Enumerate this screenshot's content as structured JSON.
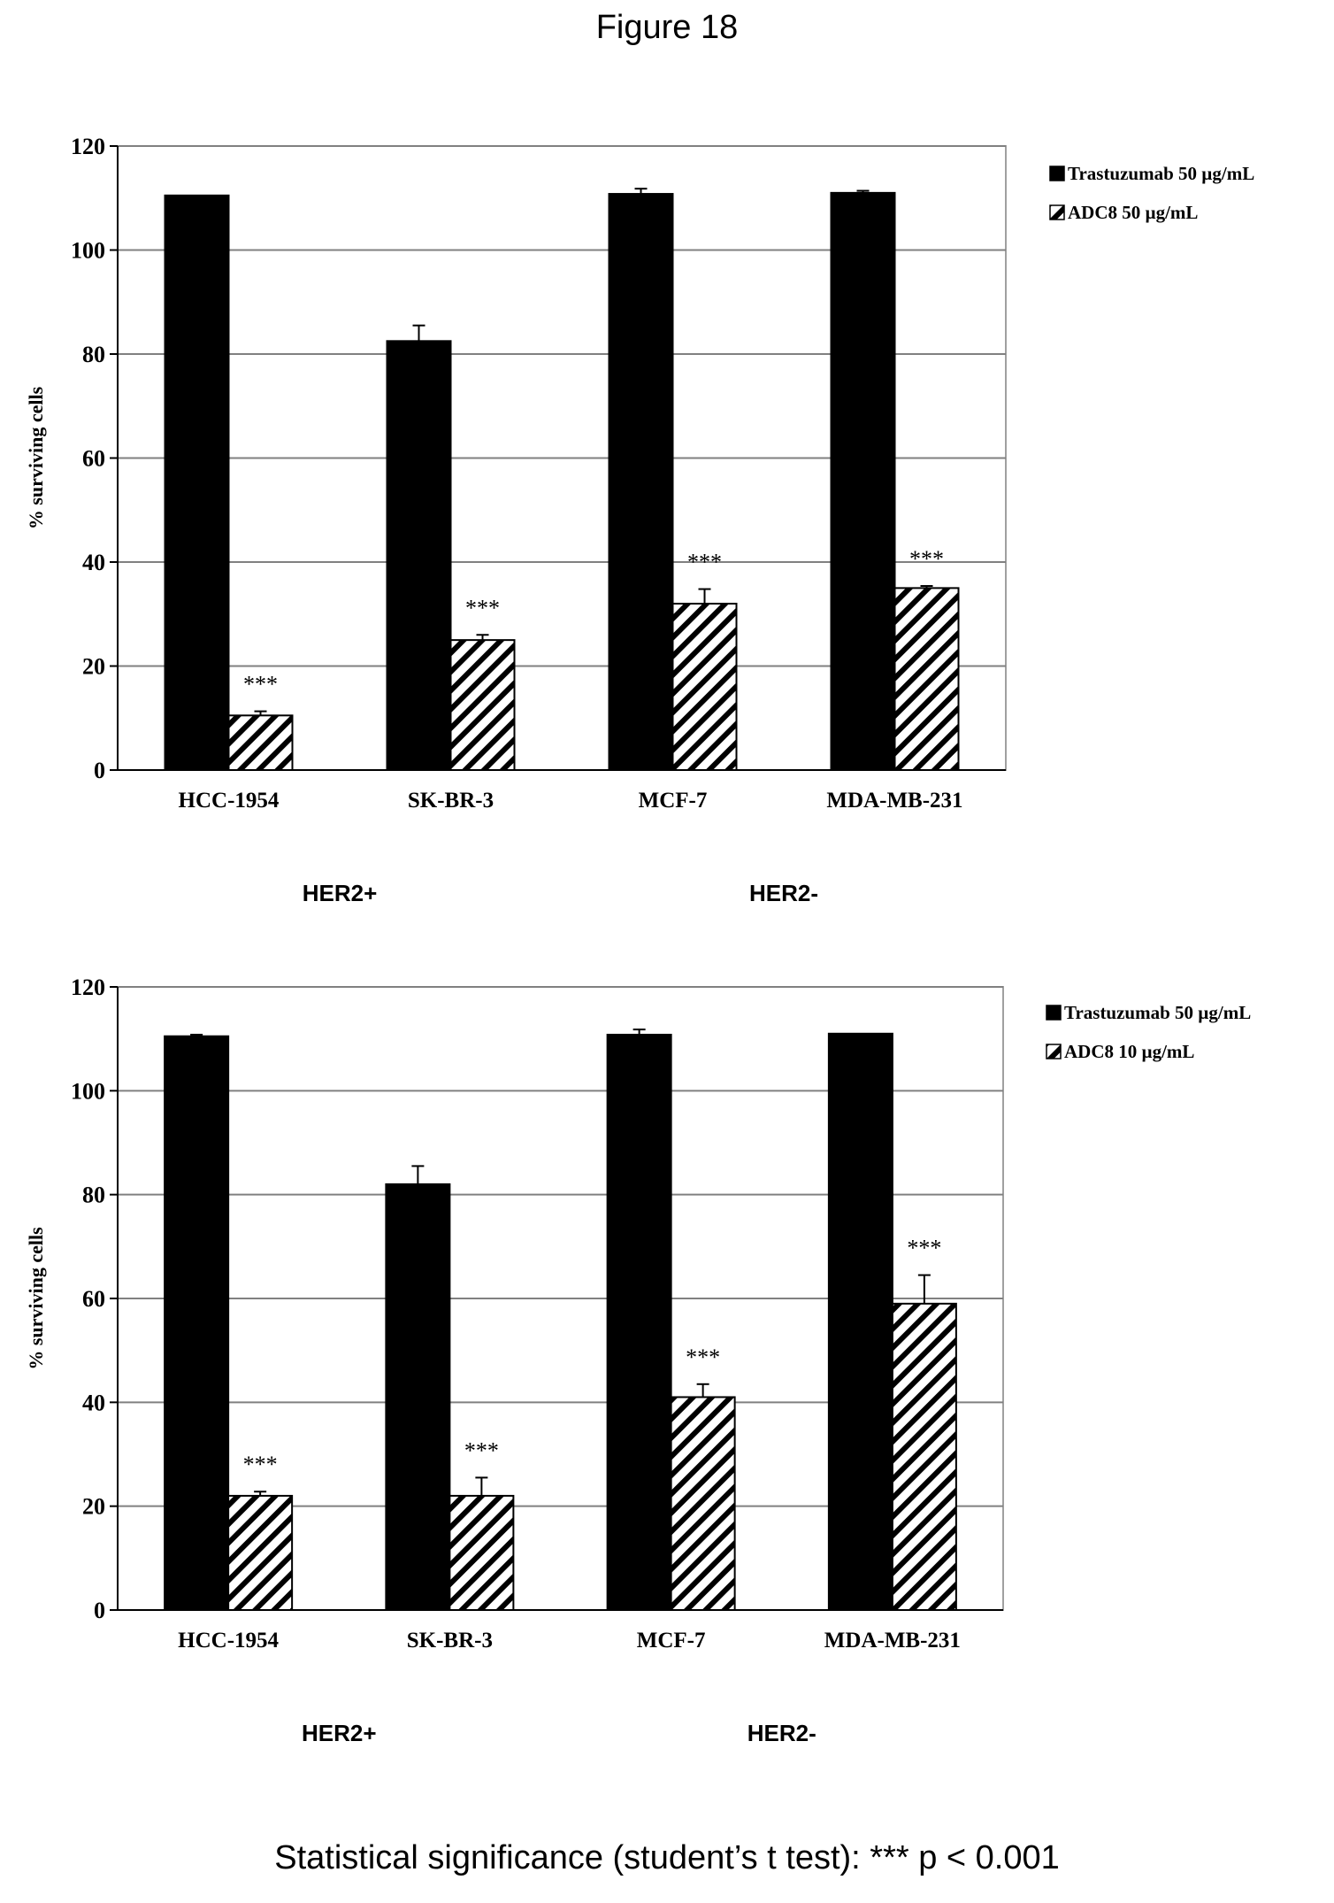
{
  "figure_title": "Figure 18",
  "footnote": "Statistical significance (student’s t test): *** p < 0.001",
  "colors": {
    "trastuzumab": "#000000",
    "adc_stroke": "#000000",
    "grid": "#808080",
    "plot_border": "#a0a0a0"
  },
  "chart_data": [
    {
      "type": "bar",
      "title": "",
      "xlabel": "",
      "ylabel": "% surviving cells",
      "ylim": [
        0,
        120
      ],
      "yticks": [
        "0",
        "20",
        "40",
        "60",
        "80",
        "100",
        "120"
      ],
      "ytick_values": [
        0,
        20,
        40,
        60,
        80,
        100,
        120
      ],
      "grid": true,
      "legend_position": "right",
      "categories": [
        "HCC-1954",
        "SK-BR-3",
        "MCF-7",
        "MDA-MB-231"
      ],
      "groups": [
        "HER2+",
        "HER2-"
      ],
      "series": [
        {
          "name": "Trastuzumab  50 µg/mL",
          "pattern": "solid",
          "values": [
            110.5,
            82.5,
            110.8,
            111.0
          ],
          "errors": [
            0,
            3,
            1,
            0.4
          ],
          "annotations": [
            "",
            "",
            "",
            ""
          ]
        },
        {
          "name": "ADC8  50 µg/mL",
          "pattern": "hatched",
          "values": [
            10.5,
            25.0,
            32.0,
            35.0
          ],
          "errors": [
            0.8,
            1.0,
            2.8,
            0.4
          ],
          "annotations": [
            "***",
            "***",
            "***",
            "***"
          ]
        }
      ]
    },
    {
      "type": "bar",
      "title": "",
      "xlabel": "",
      "ylabel": "% surviving cells",
      "ylim": [
        0,
        120
      ],
      "yticks": [
        "0",
        "20",
        "40",
        "60",
        "80",
        "100",
        "120"
      ],
      "ytick_values": [
        0,
        20,
        40,
        60,
        80,
        100,
        120
      ],
      "grid": true,
      "legend_position": "right",
      "categories": [
        "HCC-1954",
        "SK-BR-3",
        "MCF-7",
        "MDA-MB-231"
      ],
      "groups": [
        "HER2+",
        "HER2-"
      ],
      "series": [
        {
          "name": "Trastuzumab  50 µg/mL",
          "pattern": "solid",
          "values": [
            110.5,
            82.0,
            110.8,
            111.0
          ],
          "errors": [
            0.3,
            3.5,
            1.0,
            0
          ],
          "annotations": [
            "",
            "",
            "",
            ""
          ]
        },
        {
          "name": "ADC8  10 µg/mL",
          "pattern": "hatched",
          "values": [
            22.0,
            22.0,
            41.0,
            59.0
          ],
          "errors": [
            0.8,
            3.5,
            2.5,
            5.5
          ],
          "annotations": [
            "***",
            "***",
            "***",
            "***"
          ]
        }
      ]
    }
  ]
}
